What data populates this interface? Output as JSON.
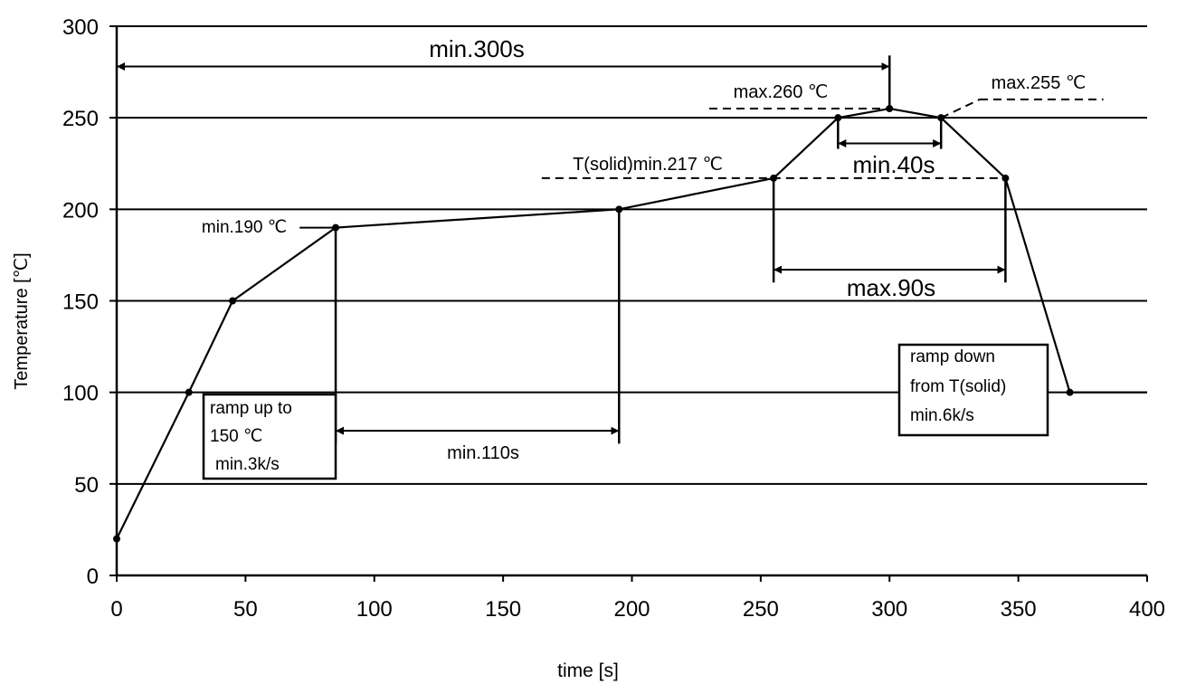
{
  "chart_data": {
    "type": "line",
    "xlabel": "time [s]",
    "ylabel": "Temperature [℃]",
    "xlim": [
      0,
      400
    ],
    "ylim": [
      0,
      300
    ],
    "xticks": [
      "0",
      "50",
      "100",
      "150",
      "200",
      "250",
      "300",
      "350",
      "400"
    ],
    "yticks": [
      "0",
      "50",
      "100",
      "150",
      "200",
      "250",
      "300"
    ],
    "grid": "horizontal",
    "series": [
      {
        "x": [
          0,
          28,
          45,
          85,
          195,
          255,
          280,
          300,
          320,
          345,
          370,
          400
        ],
        "y": [
          20,
          100,
          150,
          190,
          200,
          217,
          250,
          255,
          250,
          217,
          100,
          100
        ]
      }
    ],
    "annotations": {
      "min300s": "min.300s",
      "max260": "max.260 ℃",
      "max255": "max.255 ℃",
      "tsolid": "T(solid)min.217 ℃",
      "min40s": "min.40s",
      "min190": "min.190 ℃",
      "max90s": "max.90s",
      "min110s": "min.110s",
      "box_left_l1": "ramp up to",
      "box_left_l2": "150 ℃",
      "box_left_l3": "min.3k/s",
      "box_right_l1": "ramp down",
      "box_right_l2": "from T(solid)",
      "box_right_l3": "min.6k/s"
    }
  }
}
